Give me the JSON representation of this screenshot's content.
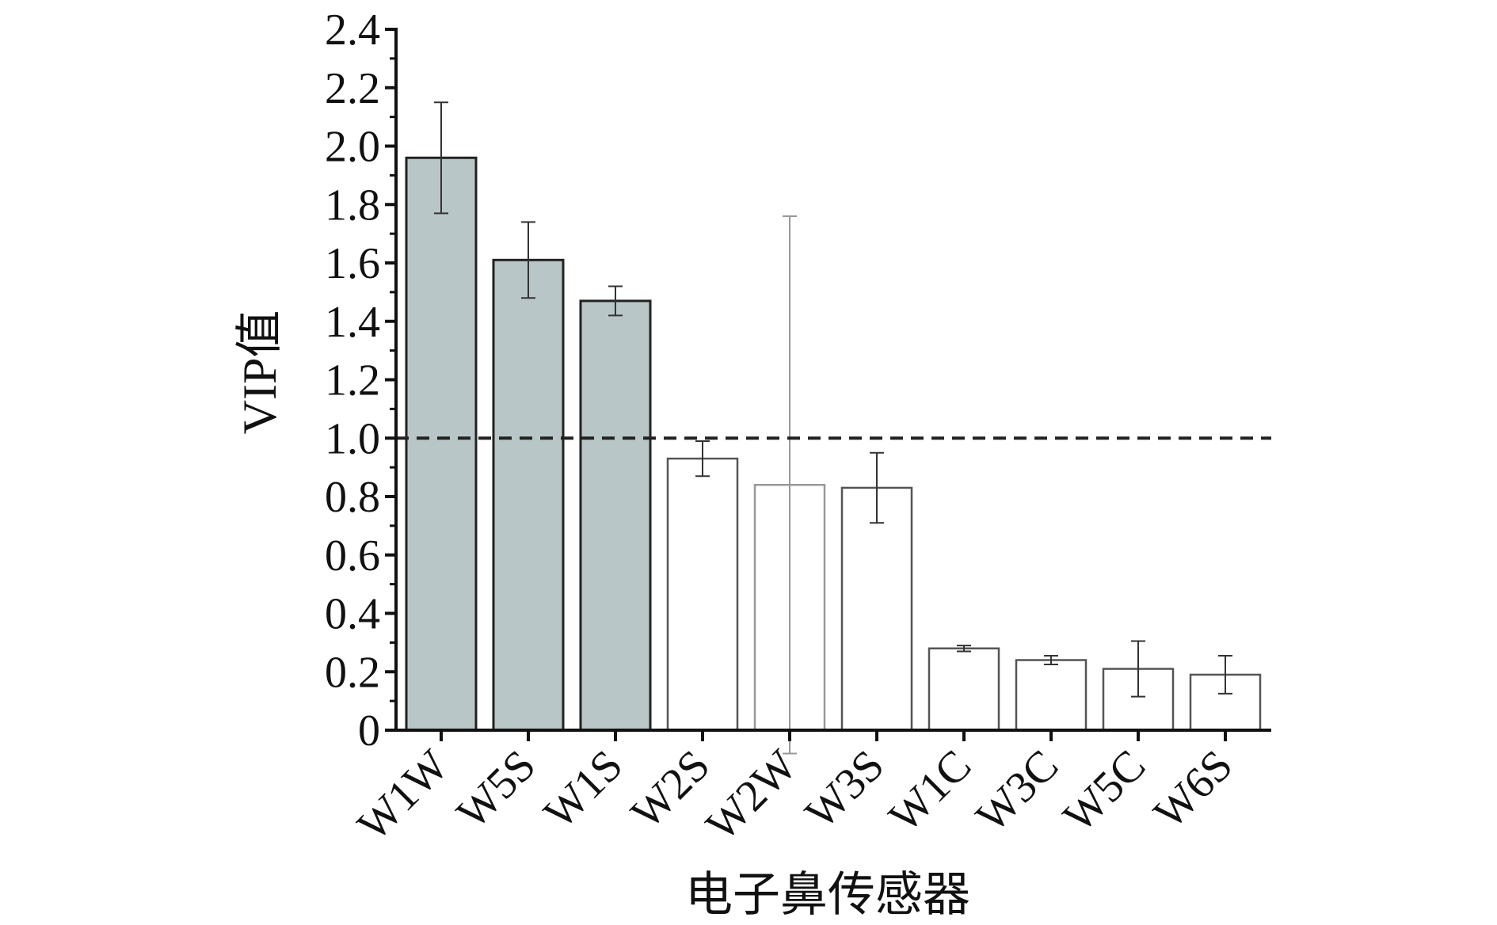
{
  "chart_data": {
    "type": "bar",
    "xlabel": "电子鼻传感器",
    "ylabel": "VIP值",
    "ylim": [
      0,
      2.4
    ],
    "y_ticks": [
      "0",
      "0.2",
      "0.4",
      "0.6",
      "0.8",
      "1.0",
      "1.2",
      "1.4",
      "1.6",
      "1.8",
      "2.0",
      "2.2",
      "2.4"
    ],
    "threshold": 1.0,
    "categories": [
      "W1W",
      "W5S",
      "W1S",
      "W2S",
      "W2W",
      "W3S",
      "W1C",
      "W3C",
      "W5C",
      "W6S"
    ],
    "values": [
      1.96,
      1.61,
      1.47,
      0.93,
      0.84,
      0.83,
      0.28,
      0.24,
      0.21,
      0.19
    ],
    "errors": [
      0.19,
      0.13,
      0.05,
      0.06,
      0.92,
      0.12,
      0.01,
      0.015,
      0.095,
      0.065
    ],
    "highlighted": [
      true,
      true,
      true,
      false,
      false,
      false,
      false,
      false,
      false,
      false
    ],
    "colors": {
      "highlight_fill": "#b9c6c7",
      "normal_fill": "#ffffff",
      "bar_stroke_dark": "#222222",
      "bar_stroke_light": "#555555",
      "w2w_stroke": "#999999",
      "axis": "#111111",
      "threshold_line": "#222222"
    }
  }
}
